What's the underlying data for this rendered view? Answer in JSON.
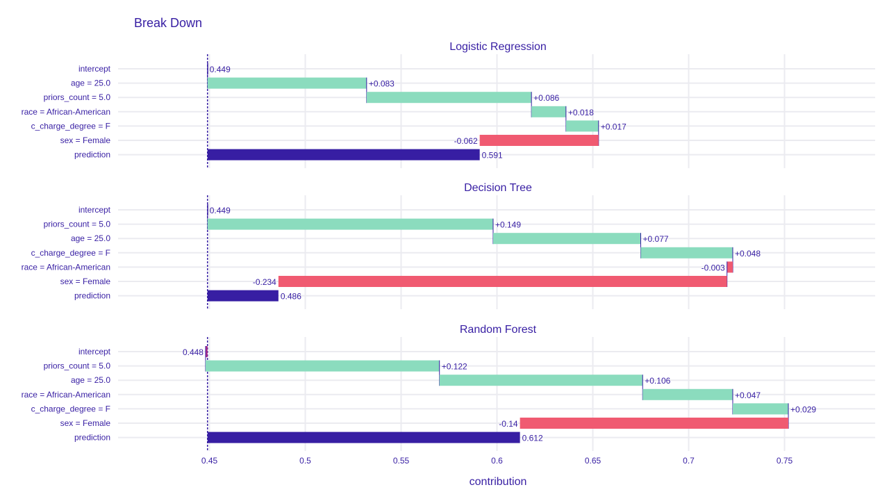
{
  "chart_data": {
    "type": "bar",
    "title": "Break Down",
    "xlabel": "contribution",
    "xlim": [
      0.4,
      0.8
    ],
    "xticks": [
      0.45,
      0.5,
      0.55,
      0.6,
      0.65,
      0.7,
      0.75
    ],
    "xtick_labels": [
      "0.45",
      "0.5",
      "0.55",
      "0.6",
      "0.65",
      "0.7",
      "0.75"
    ],
    "baseline": 0.449,
    "grid": true,
    "colors": {
      "positive": "#8bdcbe",
      "negative": "#f05a71",
      "prediction": "#371ea3",
      "text": "#371ea3",
      "grid": "#ebebf0",
      "baseline_line": "#371ea3",
      "connector": "#371ea3",
      "intercept_negative": "#ae2c87"
    },
    "panels": [
      {
        "subtitle": "Logistic Regression",
        "rows": [
          {
            "variable": "intercept",
            "start": 0.449,
            "end": 0.449,
            "label": "0.449",
            "kind": "intercept"
          },
          {
            "variable": "age = 25.0",
            "start": 0.449,
            "end": 0.532,
            "label": "+0.083",
            "kind": "positive"
          },
          {
            "variable": "priors_count = 5.0",
            "start": 0.532,
            "end": 0.618,
            "label": "+0.086",
            "kind": "positive"
          },
          {
            "variable": "race = African-American",
            "start": 0.618,
            "end": 0.636,
            "label": "+0.018",
            "kind": "positive"
          },
          {
            "variable": "c_charge_degree = F",
            "start": 0.636,
            "end": 0.653,
            "label": "+0.017",
            "kind": "positive"
          },
          {
            "variable": "sex = Female",
            "start": 0.653,
            "end": 0.591,
            "label": "-0.062",
            "kind": "negative"
          },
          {
            "variable": "prediction",
            "start": 0.449,
            "end": 0.591,
            "label": "0.591",
            "kind": "prediction"
          }
        ]
      },
      {
        "subtitle": "Decision Tree",
        "rows": [
          {
            "variable": "intercept",
            "start": 0.449,
            "end": 0.449,
            "label": "0.449",
            "kind": "intercept"
          },
          {
            "variable": "priors_count = 5.0",
            "start": 0.449,
            "end": 0.598,
            "label": "+0.149",
            "kind": "positive"
          },
          {
            "variable": "age = 25.0",
            "start": 0.598,
            "end": 0.675,
            "label": "+0.077",
            "kind": "positive"
          },
          {
            "variable": "c_charge_degree = F",
            "start": 0.675,
            "end": 0.723,
            "label": "+0.048",
            "kind": "positive"
          },
          {
            "variable": "race = African-American",
            "start": 0.723,
            "end": 0.72,
            "label": "-0.003",
            "kind": "negative"
          },
          {
            "variable": "sex = Female",
            "start": 0.72,
            "end": 0.486,
            "label": "-0.234",
            "kind": "negative"
          },
          {
            "variable": "prediction",
            "start": 0.449,
            "end": 0.486,
            "label": "0.486",
            "kind": "prediction"
          }
        ]
      },
      {
        "subtitle": "Random Forest",
        "rows": [
          {
            "variable": "intercept",
            "start": 0.449,
            "end": 0.448,
            "label": "0.448",
            "kind": "intercept_negative"
          },
          {
            "variable": "priors_count = 5.0",
            "start": 0.448,
            "end": 0.57,
            "label": "+0.122",
            "kind": "positive"
          },
          {
            "variable": "age = 25.0",
            "start": 0.57,
            "end": 0.676,
            "label": "+0.106",
            "kind": "positive"
          },
          {
            "variable": "race = African-American",
            "start": 0.676,
            "end": 0.723,
            "label": "+0.047",
            "kind": "positive"
          },
          {
            "variable": "c_charge_degree = F",
            "start": 0.723,
            "end": 0.752,
            "label": "+0.029",
            "kind": "positive"
          },
          {
            "variable": "sex = Female",
            "start": 0.752,
            "end": 0.612,
            "label": "-0.14",
            "kind": "negative"
          },
          {
            "variable": "prediction",
            "start": 0.449,
            "end": 0.612,
            "label": "0.612",
            "kind": "prediction"
          }
        ]
      }
    ]
  }
}
